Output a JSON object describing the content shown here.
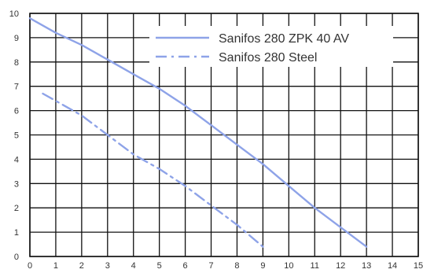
{
  "chart_data": {
    "type": "line",
    "xlim": [
      0,
      15
    ],
    "ylim": [
      0,
      10
    ],
    "x_ticks": [
      "0",
      "1",
      "2",
      "3",
      "4",
      "5",
      "6",
      "7",
      "8",
      "9",
      "10",
      "11",
      "12",
      "13",
      "14",
      "15"
    ],
    "y_ticks": [
      "0",
      "1",
      "2",
      "3",
      "4",
      "5",
      "6",
      "7",
      "8",
      "9",
      "10"
    ],
    "grid": true,
    "legend_position": "top-right",
    "series": [
      {
        "name": "Sanifos 280 ZPK 40 AV",
        "style": "solid",
        "color": "#8ea3e8",
        "x": [
          0,
          1,
          2,
          3,
          4,
          5,
          6,
          7,
          8,
          9,
          10,
          11,
          12,
          13
        ],
        "y": [
          9.8,
          9.2,
          8.7,
          8.1,
          7.5,
          6.9,
          6.2,
          5.4,
          4.6,
          3.8,
          2.9,
          2.0,
          1.2,
          0.4
        ]
      },
      {
        "name": "Sanifos 280 Steel",
        "style": "dashdot",
        "color": "#8ea3e8",
        "x": [
          0.5,
          1,
          2,
          3,
          4,
          5,
          6,
          7,
          8,
          9
        ],
        "y": [
          6.7,
          6.4,
          5.8,
          5.0,
          4.2,
          3.6,
          2.9,
          2.1,
          1.3,
          0.4
        ]
      }
    ]
  }
}
